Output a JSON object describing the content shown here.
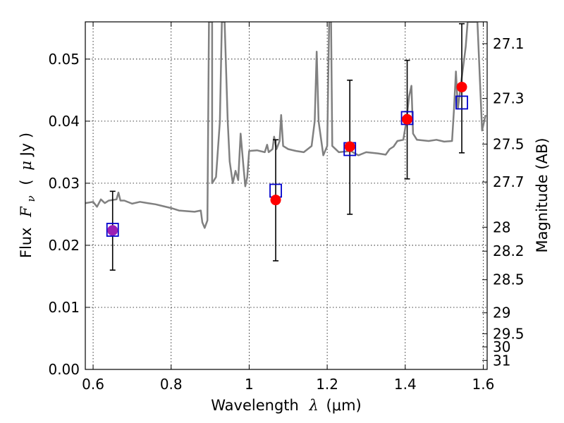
{
  "chart_data": {
    "type": "scatter",
    "xlabel_text": "Wavelength",
    "xlabel_var": "λ",
    "xlabel_unit": "(μm)",
    "ylabel_text": "Flux",
    "ylabel_var": "F",
    "ylabel_sub": "ν",
    "ylabel_unit_open": "(",
    "ylabel_unit_mu": "μ",
    "ylabel_unit_rest": "Jy )",
    "y2label": "Magnitude (AB)",
    "xlim": [
      0.58,
      1.61
    ],
    "ylim": [
      0.0,
      0.056
    ],
    "grid": true,
    "x_ticks": [
      {
        "value": 0.6,
        "label": "0.6"
      },
      {
        "value": 0.8,
        "label": "0.8"
      },
      {
        "value": 1.0,
        "label": "1"
      },
      {
        "value": 1.2,
        "label": "1.2"
      },
      {
        "value": 1.4,
        "label": "1.4"
      },
      {
        "value": 1.6,
        "label": "1.6"
      }
    ],
    "y_ticks": [
      {
        "value": 0.0,
        "label": "0.00"
      },
      {
        "value": 0.01,
        "label": "0.01"
      },
      {
        "value": 0.02,
        "label": "0.02"
      },
      {
        "value": 0.03,
        "label": "0.03"
      },
      {
        "value": 0.04,
        "label": "0.04"
      },
      {
        "value": 0.05,
        "label": "0.05"
      }
    ],
    "y2_ticks": [
      {
        "mag": 27.1,
        "label": "27.1"
      },
      {
        "mag": 27.3,
        "label": "27.3"
      },
      {
        "mag": 27.5,
        "label": "27.5"
      },
      {
        "mag": 27.7,
        "label": "27.7"
      },
      {
        "mag": 28.0,
        "label": "28"
      },
      {
        "mag": 28.2,
        "label": "28.2"
      },
      {
        "mag": 28.5,
        "label": "28.5"
      },
      {
        "mag": 29.0,
        "label": "29"
      },
      {
        "mag": 29.5,
        "label": "29.5"
      },
      {
        "mag": 30.0,
        "label": "30"
      },
      {
        "mag": 31.0,
        "label": "31"
      }
    ],
    "observed": [
      {
        "x": 0.65,
        "y": 0.0224,
        "err_low": 0.016,
        "err_high": 0.0287
      },
      {
        "x": 1.068,
        "y": 0.0273,
        "err_low": 0.0175,
        "err_high": 0.037
      },
      {
        "x": 1.258,
        "y": 0.0359,
        "err_low": 0.025,
        "err_high": 0.0466
      },
      {
        "x": 1.405,
        "y": 0.0403,
        "err_low": 0.0307,
        "err_high": 0.0498
      },
      {
        "x": 1.545,
        "y": 0.0455,
        "err_low": 0.0349,
        "err_high": 0.0557
      }
    ],
    "model_points": [
      {
        "x": 0.65,
        "y": 0.0225
      },
      {
        "x": 1.068,
        "y": 0.0288
      },
      {
        "x": 1.258,
        "y": 0.0355
      },
      {
        "x": 1.405,
        "y": 0.0405
      },
      {
        "x": 1.545,
        "y": 0.043
      }
    ],
    "sed_spectrum": [
      [
        0.58,
        0.0268
      ],
      [
        0.6,
        0.027
      ],
      [
        0.61,
        0.0262
      ],
      [
        0.62,
        0.0274
      ],
      [
        0.63,
        0.0268
      ],
      [
        0.64,
        0.0272
      ],
      [
        0.66,
        0.0274
      ],
      [
        0.665,
        0.0285
      ],
      [
        0.67,
        0.0272
      ],
      [
        0.68,
        0.0272
      ],
      [
        0.7,
        0.0267
      ],
      [
        0.72,
        0.027
      ],
      [
        0.74,
        0.0268
      ],
      [
        0.76,
        0.0266
      ],
      [
        0.78,
        0.0263
      ],
      [
        0.8,
        0.026
      ],
      [
        0.82,
        0.0256
      ],
      [
        0.84,
        0.0255
      ],
      [
        0.86,
        0.0254
      ],
      [
        0.876,
        0.0256
      ],
      [
        0.88,
        0.0237
      ],
      [
        0.886,
        0.0228
      ],
      [
        0.893,
        0.024
      ],
      [
        0.897,
        0.056
      ],
      [
        0.905,
        0.056
      ],
      [
        0.905,
        0.03
      ],
      [
        0.915,
        0.031
      ],
      [
        0.925,
        0.04
      ],
      [
        0.93,
        0.056
      ],
      [
        0.937,
        0.056
      ],
      [
        0.945,
        0.04
      ],
      [
        0.95,
        0.0335
      ],
      [
        0.958,
        0.03
      ],
      [
        0.965,
        0.032
      ],
      [
        0.972,
        0.0305
      ],
      [
        0.978,
        0.038
      ],
      [
        0.985,
        0.033
      ],
      [
        0.99,
        0.0295
      ],
      [
        0.995,
        0.031
      ],
      [
        1.0,
        0.0352
      ],
      [
        1.02,
        0.0353
      ],
      [
        1.04,
        0.035
      ],
      [
        1.046,
        0.0362
      ],
      [
        1.05,
        0.035
      ],
      [
        1.06,
        0.0355
      ],
      [
        1.064,
        0.0375
      ],
      [
        1.07,
        0.0355
      ],
      [
        1.078,
        0.0368
      ],
      [
        1.082,
        0.041
      ],
      [
        1.087,
        0.036
      ],
      [
        1.1,
        0.0355
      ],
      [
        1.12,
        0.0352
      ],
      [
        1.14,
        0.035
      ],
      [
        1.16,
        0.036
      ],
      [
        1.168,
        0.04
      ],
      [
        1.173,
        0.0512
      ],
      [
        1.178,
        0.04
      ],
      [
        1.19,
        0.0345
      ],
      [
        1.2,
        0.036
      ],
      [
        1.205,
        0.056
      ],
      [
        1.21,
        0.056
      ],
      [
        1.213,
        0.036
      ],
      [
        1.23,
        0.035
      ],
      [
        1.26,
        0.0352
      ],
      [
        1.28,
        0.0345
      ],
      [
        1.3,
        0.035
      ],
      [
        1.33,
        0.0348
      ],
      [
        1.35,
        0.0346
      ],
      [
        1.36,
        0.0355
      ],
      [
        1.37,
        0.0359
      ],
      [
        1.38,
        0.0368
      ],
      [
        1.395,
        0.037
      ],
      [
        1.403,
        0.04
      ],
      [
        1.41,
        0.044
      ],
      [
        1.416,
        0.0457
      ],
      [
        1.42,
        0.038
      ],
      [
        1.43,
        0.037
      ],
      [
        1.46,
        0.0368
      ],
      [
        1.48,
        0.037
      ],
      [
        1.5,
        0.0367
      ],
      [
        1.52,
        0.0368
      ],
      [
        1.525,
        0.042
      ],
      [
        1.53,
        0.048
      ],
      [
        1.535,
        0.042
      ],
      [
        1.545,
        0.047
      ],
      [
        1.555,
        0.052
      ],
      [
        1.56,
        0.056
      ],
      [
        1.575,
        0.056
      ],
      [
        1.585,
        0.056
      ],
      [
        1.597,
        0.0385
      ],
      [
        1.606,
        0.041
      ]
    ],
    "colors": {
      "spectrum": "#808080",
      "observed": "#ff0000",
      "model": "#0000cc",
      "first_observed": "#9a1fb4",
      "grid": "#000000",
      "errorbar": "#000000"
    }
  }
}
